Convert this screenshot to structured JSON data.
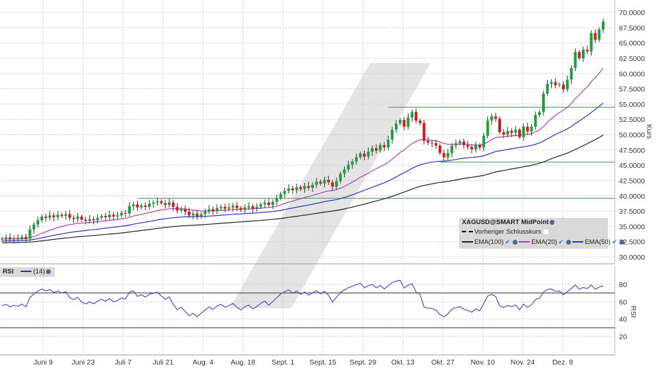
{
  "chart_data": {
    "type": "candlestick",
    "symbol": "XAGUSD@SMART MidPoint",
    "ylabel": "Kurs",
    "ylim": [
      30,
      70
    ],
    "y_ticks": [
      "70.0000",
      "67.5000",
      "65.0000",
      "62.5000",
      "60.0000",
      "57.5000",
      "55.0000",
      "52.5000",
      "50.0000",
      "47.5000",
      "45.0000",
      "42.5000",
      "40.0000",
      "37.5000",
      "35.0000",
      "32.5000",
      "30.0000"
    ],
    "x_ticks": [
      "Juni 9",
      "Juni 23",
      "Juli 7",
      "Juli 21",
      "Aug. 4",
      "Aug. 18",
      "Sept. 1",
      "Sept. 15",
      "Sept. 29",
      "Okt. 13",
      "Okt. 27",
      "Nov. 10",
      "Nov. 24",
      "Dez. 8"
    ],
    "grid": true,
    "closes": [
      33.0,
      33.2,
      32.9,
      33.1,
      33.0,
      33.3,
      33.0,
      34.5,
      35.3,
      36.0,
      36.6,
      36.4,
      36.8,
      36.5,
      36.9,
      36.7,
      37.0,
      36.4,
      36.2,
      36.6,
      36.1,
      35.9,
      36.2,
      36.0,
      36.4,
      36.7,
      36.5,
      36.9,
      36.6,
      36.8,
      37.2,
      37.1,
      38.3,
      38.6,
      38.1,
      38.4,
      38.2,
      38.7,
      38.9,
      39.1,
      38.8,
      38.5,
      38.9,
      38.2,
      37.6,
      37.9,
      37.4,
      36.8,
      37.1,
      36.6,
      37.0,
      37.4,
      37.8,
      37.5,
      38.0,
      38.2,
      37.9,
      38.1,
      38.4,
      38.0,
      37.7,
      38.1,
      38.3,
      37.9,
      38.2,
      38.6,
      38.9,
      38.5,
      39.0,
      39.6,
      40.3,
      40.8,
      41.2,
      40.9,
      41.4,
      41.1,
      41.6,
      41.3,
      41.8,
      42.3,
      42.0,
      42.6,
      42.2,
      41.5,
      42.4,
      43.6,
      44.3,
      45.1,
      45.6,
      46.3,
      46.9,
      46.4,
      47.2,
      47.8,
      47.4,
      48.3,
      47.9,
      49.2,
      50.8,
      51.8,
      52.4,
      51.3,
      52.8,
      53.7,
      52.3,
      51.9,
      49.0,
      48.7,
      48.6,
      48.2,
      47.0,
      46.3,
      47.0,
      48.2,
      48.6,
      48.9,
      48.3,
      48.0,
      47.6,
      48.3,
      47.9,
      49.8,
      52.3,
      53.0,
      52.6,
      50.4,
      50.0,
      50.6,
      50.3,
      50.8,
      49.6,
      51.3,
      50.5,
      51.3,
      53.2,
      53.7,
      56.7,
      58.3,
      58.6,
      58.1,
      58.2,
      57.4,
      59.0,
      60.9,
      63.5,
      62.5,
      63.9,
      63.6,
      66.6,
      65.5,
      67.2,
      68.5
    ],
    "horizontal_lines": [
      54.5,
      45.5,
      39.6
    ],
    "indicators": [
      {
        "name": "EMA(100)",
        "period": 100,
        "color": "#222222"
      },
      {
        "name": "EMA(20)",
        "period": 20,
        "color": "#b040b0"
      },
      {
        "name": "EMA(50)",
        "period": 50,
        "color": "#3030c0"
      }
    ],
    "rsi": {
      "label": "RSI",
      "period_label": "(14)",
      "period": 14,
      "ylabel": "RSI",
      "ylim": [
        10,
        90
      ],
      "levels": [
        70,
        30
      ],
      "y_ticks": [
        "80",
        "60",
        "40",
        "20"
      ],
      "color": "#5050c0"
    },
    "colors": {
      "up": "#1e9e3e",
      "down": "#d21c1c",
      "hline": "#3a9a4a"
    }
  },
  "legend": {
    "title": "XAGUSD@SMART MidPoint",
    "prev_close": "Vorheriger Schlusskurs",
    "ema100": "EMA(100)",
    "ema20": "EMA(20)",
    "ema50": "EMA(50)"
  }
}
